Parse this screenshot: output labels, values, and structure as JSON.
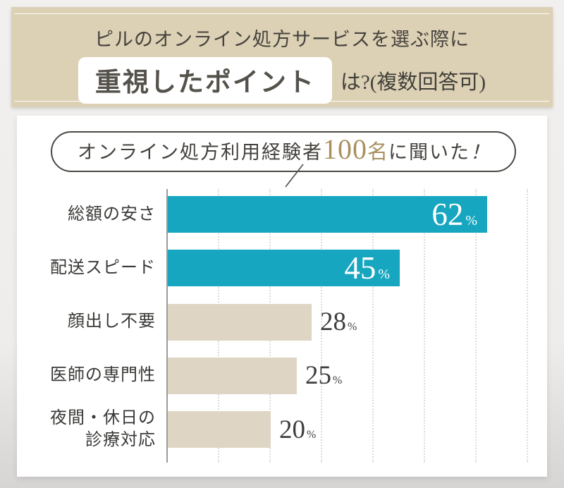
{
  "header": {
    "line1": "ピルのオンライン処方サービスを選ぶ際に",
    "highlight": "重視したポイント",
    "suffix": "は?(複数回答可)"
  },
  "callout": {
    "prefix": "オンライン処方利用経験者",
    "count": "100",
    "unit": "名",
    "suffix": "に聞いた",
    "exclamation": "！"
  },
  "colors": {
    "banner_bg": "#dcd0b5",
    "highlight_bar": "#17a6bf",
    "muted_bar": "#ded5c4",
    "gold_accent": "#a8905f",
    "value_inside": "#ffffff",
    "value_outside": "#3e3e3e",
    "axis": "#9b9b9b",
    "gridline": "#dddcda",
    "label_text": "#393937"
  },
  "chart_data": {
    "type": "bar",
    "orientation": "horizontal",
    "title": "ピルのオンライン処方サービスを選ぶ際に重視したポイント (複数回答可, n=100)",
    "categories": [
      "総額の安さ",
      "配送スピード",
      "顔出し不要",
      "医師の専門性",
      "夜間・休日の診療対応"
    ],
    "category_lines": [
      [
        "総額の安さ"
      ],
      [
        "配送スピード"
      ],
      [
        "顔出し不要"
      ],
      [
        "医師の専門性"
      ],
      [
        "夜間・休日の",
        "診療対応"
      ]
    ],
    "values": [
      62,
      45,
      28,
      25,
      20
    ],
    "unit": "%",
    "xlim": [
      0,
      100
    ],
    "gridline_interval_pct": 10,
    "grid": true,
    "legend": false,
    "bar_styles": [
      "highlight",
      "highlight",
      "muted",
      "muted",
      "muted"
    ],
    "value_label_placement": [
      "inside",
      "inside",
      "outside",
      "outside",
      "outside"
    ]
  }
}
